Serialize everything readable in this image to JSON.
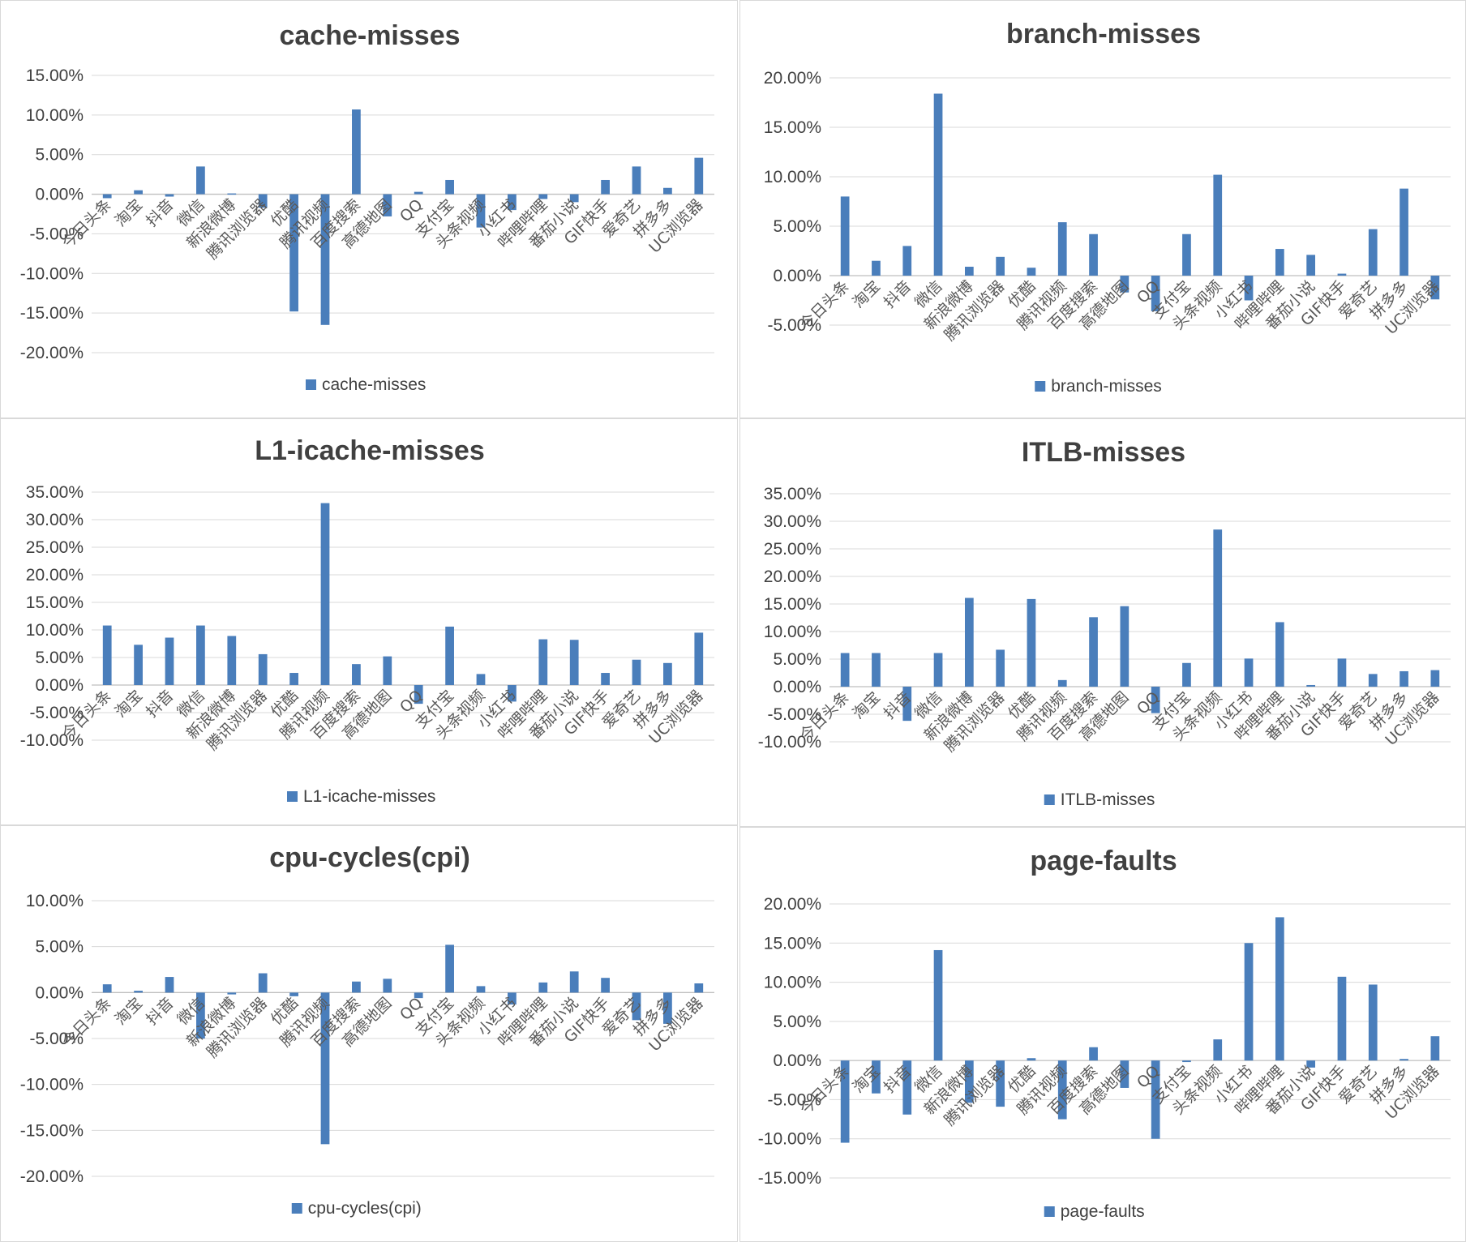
{
  "categories": [
    "今日头条",
    "淘宝",
    "抖音",
    "微信",
    "新浪微博",
    "腾讯浏览器",
    "优酷",
    "腾讯视频",
    "百度搜索",
    "高德地图",
    "QQ",
    "支付宝",
    "头条视频",
    "小红书",
    "哔哩哔哩",
    "番茄小说",
    "GIF快手",
    "爱奇艺",
    "拼多多",
    "UC浏览器"
  ],
  "colors": {
    "bar": "#4a7ebb"
  },
  "chart_data": [
    {
      "type": "bar",
      "title": "cache-misses",
      "legend": "cache-misses",
      "ylim": [
        -0.2,
        0.15
      ],
      "ystep": 0.05,
      "yticks": [
        "15.00%",
        "10.00%",
        "5.00%",
        "0.00%",
        "-5.00%",
        "-10.00%",
        "-15.00%",
        "-20.00%"
      ],
      "series": [
        {
          "name": "cache-misses",
          "values": [
            -0.005,
            0.005,
            -0.003,
            0.035,
            0.001,
            -0.017,
            -0.148,
            -0.165,
            0.107,
            -0.028,
            0.003,
            0.018,
            -0.042,
            -0.02,
            -0.006,
            -0.01,
            0.018,
            0.035,
            0.008,
            0.046
          ]
        }
      ]
    },
    {
      "type": "bar",
      "title": "branch-misses",
      "legend": "branch-misses",
      "ylim": [
        -0.05,
        0.2
      ],
      "ystep": 0.05,
      "yticks": [
        "20.00%",
        "15.00%",
        "10.00%",
        "5.00%",
        "0.00%",
        "-5.00%"
      ],
      "series": [
        {
          "name": "branch-misses",
          "values": [
            0.08,
            0.015,
            0.03,
            0.184,
            0.009,
            0.019,
            0.008,
            0.054,
            0.042,
            -0.017,
            -0.036,
            0.042,
            0.102,
            -0.025,
            0.027,
            0.021,
            0.002,
            0.047,
            0.088,
            -0.024
          ]
        }
      ]
    },
    {
      "type": "bar",
      "title": "L1-icache-misses",
      "legend": "L1-icache-misses",
      "ylim": [
        -0.1,
        0.35
      ],
      "ystep": 0.05,
      "yticks": [
        "35.00%",
        "30.00%",
        "25.00%",
        "20.00%",
        "15.00%",
        "10.00%",
        "5.00%",
        "0.00%",
        "-5.00%",
        "-10.00%"
      ],
      "series": [
        {
          "name": "L1-icache-misses",
          "values": [
            0.108,
            0.073,
            0.086,
            0.108,
            0.089,
            0.056,
            0.022,
            0.33,
            0.038,
            0.052,
            -0.034,
            0.106,
            0.02,
            -0.03,
            0.083,
            0.082,
            0.022,
            0.046,
            0.04,
            0.095
          ]
        }
      ]
    },
    {
      "type": "bar",
      "title": "ITLB-misses",
      "legend": "ITLB-misses",
      "ylim": [
        -0.1,
        0.35
      ],
      "ystep": 0.05,
      "yticks": [
        "35.00%",
        "30.00%",
        "25.00%",
        "20.00%",
        "15.00%",
        "10.00%",
        "5.00%",
        "0.00%",
        "-5.00%",
        "-10.00%"
      ],
      "series": [
        {
          "name": "ITLB-misses",
          "values": [
            0.061,
            0.061,
            -0.062,
            0.061,
            0.161,
            0.067,
            0.159,
            0.012,
            0.126,
            0.146,
            -0.048,
            0.043,
            0.285,
            0.051,
            0.117,
            0.003,
            0.051,
            0.023,
            0.028,
            0.03
          ]
        }
      ]
    },
    {
      "type": "bar",
      "title": "cpu-cycles(cpi)",
      "legend": "cpu-cycles(cpi)",
      "ylim": [
        -0.2,
        0.1
      ],
      "ystep": 0.05,
      "yticks": [
        "10.00%",
        "5.00%",
        "0.00%",
        "-5.00%",
        "-10.00%",
        "-15.00%",
        "-20.00%"
      ],
      "series": [
        {
          "name": "cpu-cycles(cpi)",
          "values": [
            0.009,
            0.002,
            0.017,
            -0.05,
            -0.002,
            0.021,
            -0.004,
            -0.165,
            0.012,
            0.015,
            -0.006,
            0.052,
            0.007,
            -0.013,
            0.011,
            0.023,
            0.016,
            -0.03,
            -0.034,
            0.01
          ]
        }
      ]
    },
    {
      "type": "bar",
      "title": "page-faults",
      "legend": "page-faults",
      "ylim": [
        -0.15,
        0.2
      ],
      "ystep": 0.05,
      "yticks": [
        "20.00%",
        "15.00%",
        "10.00%",
        "5.00%",
        "0.00%",
        "-5.00%",
        "-10.00%",
        "-15.00%"
      ],
      "series": [
        {
          "name": "page-faults",
          "values": [
            -0.105,
            -0.042,
            -0.069,
            0.141,
            -0.054,
            -0.059,
            0.003,
            -0.075,
            0.017,
            -0.035,
            -0.1,
            -0.002,
            0.027,
            0.15,
            0.183,
            -0.009,
            0.107,
            0.097,
            0.002,
            0.031
          ]
        }
      ]
    }
  ]
}
